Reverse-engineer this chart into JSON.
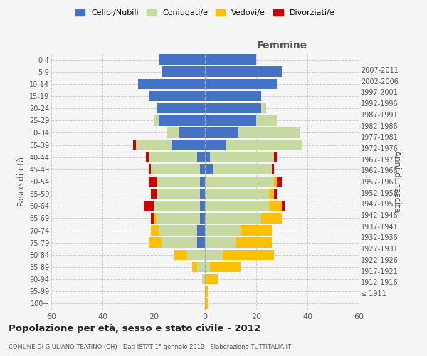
{
  "age_groups": [
    "100+",
    "95-99",
    "90-94",
    "85-89",
    "80-84",
    "75-79",
    "70-74",
    "65-69",
    "60-64",
    "55-59",
    "50-54",
    "45-49",
    "40-44",
    "35-39",
    "30-34",
    "25-29",
    "20-24",
    "15-19",
    "10-14",
    "5-9",
    "0-4"
  ],
  "birth_years": [
    "≤ 1911",
    "1912-1916",
    "1917-1921",
    "1922-1926",
    "1927-1931",
    "1932-1936",
    "1937-1941",
    "1942-1946",
    "1947-1951",
    "1952-1956",
    "1957-1961",
    "1962-1966",
    "1967-1971",
    "1972-1976",
    "1977-1981",
    "1982-1986",
    "1987-1991",
    "1992-1996",
    "1997-2001",
    "2002-2006",
    "2007-2011"
  ],
  "colors": {
    "celibi": "#4472c4",
    "coniugati": "#c5d9a0",
    "vedovi": "#ffc000",
    "divorziati": "#cc0000"
  },
  "males": {
    "celibi": [
      0,
      0,
      0,
      0,
      0,
      3,
      3,
      2,
      2,
      2,
      2,
      2,
      3,
      13,
      10,
      18,
      19,
      22,
      26,
      17,
      18
    ],
    "coniugati": [
      0,
      0,
      1,
      3,
      7,
      14,
      15,
      17,
      18,
      17,
      17,
      19,
      19,
      14,
      5,
      2,
      0,
      0,
      0,
      0,
      0
    ],
    "vedovi": [
      0,
      0,
      0,
      2,
      5,
      5,
      3,
      1,
      0,
      0,
      0,
      0,
      0,
      0,
      0,
      0,
      0,
      0,
      0,
      0,
      0
    ],
    "divorziati": [
      0,
      0,
      0,
      0,
      0,
      0,
      0,
      1,
      4,
      2,
      3,
      1,
      1,
      1,
      0,
      0,
      0,
      0,
      0,
      0,
      0
    ]
  },
  "females": {
    "nubili": [
      0,
      0,
      0,
      0,
      0,
      0,
      0,
      0,
      0,
      0,
      0,
      3,
      2,
      8,
      13,
      20,
      22,
      22,
      28,
      30,
      20
    ],
    "coniugate": [
      0,
      0,
      0,
      2,
      7,
      12,
      14,
      22,
      25,
      25,
      27,
      23,
      25,
      30,
      24,
      8,
      2,
      0,
      0,
      0,
      0
    ],
    "vedove": [
      1,
      1,
      5,
      12,
      20,
      14,
      12,
      8,
      5,
      2,
      1,
      0,
      0,
      0,
      0,
      0,
      0,
      0,
      0,
      0,
      0
    ],
    "divorziate": [
      0,
      0,
      0,
      0,
      0,
      0,
      0,
      0,
      1,
      1,
      2,
      1,
      1,
      0,
      0,
      0,
      0,
      0,
      0,
      0,
      0
    ]
  },
  "xlim": 60,
  "title": "Popolazione per età, sesso e stato civile - 2012",
  "subtitle": "COMUNE DI GIULIANO TEATINO (CH) - Dati ISTAT 1° gennaio 2012 - Elaborazione TUTTITALIA.IT",
  "xlabel_right": "Femmine",
  "ylabel": "Fasce di età",
  "ylabel_right": "Anni di nascita",
  "bg_color": "#f5f5f5",
  "grid_color": "#cccccc"
}
